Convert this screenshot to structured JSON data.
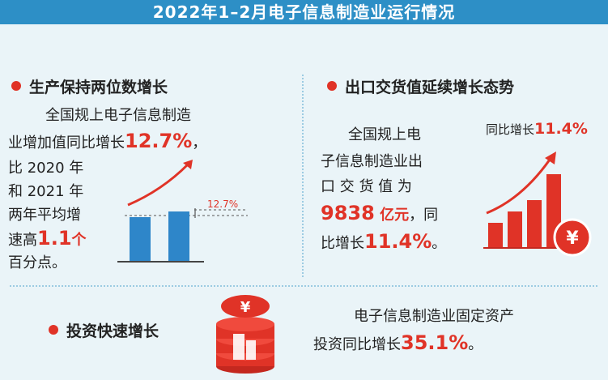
{
  "title": "2022年1–2月电子信息制造业运行情况",
  "production": {
    "heading": "生产保持两位数增长",
    "line1": "全国规上电子信息制造",
    "line2_prefix": "业增加值同比增长",
    "growth": "12.7%",
    "line2_suffix": "，",
    "line3": "比 2020 年",
    "line4": "和 2021 年",
    "line5": "两年平均增",
    "line6_prefix": "速高",
    "avg_gap": "1.1",
    "line6_suffix": "个",
    "line7": "百分点。",
    "chart_label": "12.7%"
  },
  "export": {
    "heading": "出口交货值延续增长态势",
    "line1": "全国规上电",
    "line2": "子信息制造业出",
    "line3": "口 交 货 值 为",
    "value": "9838",
    "unit_suffix": " 亿元",
    "line4_suffix": "，同",
    "line5_prefix": "比增长",
    "growth": "11.4%",
    "line5_suffix": "。",
    "badge_prefix": "同比增长",
    "badge_value": "11.4%",
    "currency_symbol": "¥"
  },
  "investment": {
    "heading": "投资快速增长",
    "line1": "电子信息制造业固定资产",
    "line2_prefix": "投资同比增长",
    "growth": "35.1%",
    "line2_suffix": "。",
    "currency_symbol": "¥"
  },
  "colors": {
    "banner": "#2d8fc6",
    "accent_red": "#e03327",
    "bar_blue": "#2e86c9",
    "background": "#eaf4f8"
  },
  "chart_data": {
    "type": "bar",
    "categories": [
      "",
      ""
    ],
    "values": [
      55,
      62
    ],
    "annotations": [
      "12.7%"
    ]
  }
}
